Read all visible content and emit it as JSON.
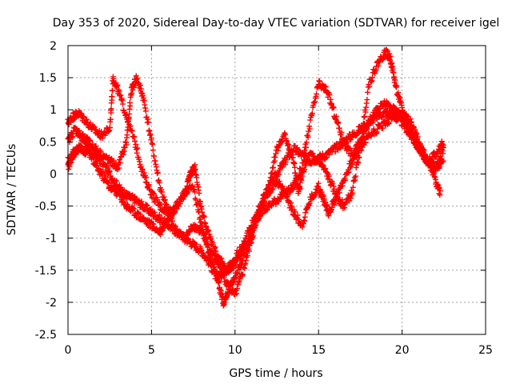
{
  "chart_data": {
    "type": "scatter",
    "title": "Day 353 of 2020, Sidereal Day-to-day VTEC variation (SDTVAR) for receiver igel",
    "xlabel": "GPS time / hours",
    "ylabel": "SDTVAR / TECUs",
    "xlim": [
      0,
      25
    ],
    "ylim": [
      -2.5,
      2
    ],
    "x_ticks": [
      "0",
      "5",
      "10",
      "15",
      "20",
      "25"
    ],
    "y_ticks": [
      "-2.5",
      "-2",
      "-1.5",
      "-1",
      "-0.5",
      "0",
      "0.5",
      "1",
      "1.5",
      "2"
    ],
    "grid": true,
    "marker": "plus",
    "color": "#ff0000",
    "series": [
      {
        "x": [
          0.0,
          0.3,
          0.6,
          1.0,
          1.5,
          2.0,
          2.5,
          3.0,
          3.3,
          3.6,
          4.0,
          4.5,
          5.0,
          5.5,
          6.0,
          6.5,
          7.0,
          7.5,
          8.0,
          8.5,
          9.0,
          9.3,
          9.6,
          10.0,
          10.5,
          11.0,
          11.5,
          12.0,
          12.5,
          13.0,
          13.5,
          14.0,
          14.5,
          15.0,
          15.5,
          16.0,
          16.5,
          17.0,
          17.5,
          18.0,
          18.5,
          19.0,
          19.5,
          20.0,
          20.5,
          21.0,
          21.5,
          22.0,
          22.5
        ],
        "y": [
          0.1,
          0.3,
          0.4,
          0.35,
          0.3,
          0.2,
          0.0,
          -0.2,
          -0.3,
          -0.35,
          -0.4,
          -0.5,
          -0.6,
          -0.7,
          -0.8,
          -0.9,
          -1.0,
          -1.1,
          -1.2,
          -1.4,
          -1.7,
          -2.0,
          -1.8,
          -1.6,
          -1.3,
          -0.9,
          -0.5,
          -0.2,
          0.0,
          0.2,
          0.4,
          0.3,
          0.2,
          0.25,
          0.3,
          0.4,
          0.5,
          0.6,
          0.7,
          0.8,
          0.9,
          0.95,
          0.9,
          0.8,
          0.6,
          0.4,
          0.2,
          0.3,
          0.5
        ]
      },
      {
        "x": [
          0.0,
          0.3,
          0.6,
          1.0,
          1.5,
          2.0,
          2.5,
          2.7,
          3.0,
          3.5,
          4.0,
          4.5,
          5.0,
          5.5,
          6.0,
          6.5,
          7.0,
          7.5,
          8.0,
          8.5,
          9.0,
          9.5,
          10.0,
          10.5,
          11.0,
          11.5,
          12.0,
          12.5,
          13.0,
          13.5,
          14.0,
          14.5,
          15.0,
          15.5,
          16.0,
          16.5,
          17.0,
          17.5,
          18.0,
          18.5,
          19.0,
          19.5,
          20.0,
          20.5,
          21.0,
          21.5,
          22.0,
          22.5
        ],
        "y": [
          0.8,
          0.9,
          0.95,
          0.85,
          0.7,
          0.6,
          0.7,
          1.5,
          1.3,
          0.9,
          0.5,
          0.0,
          -0.3,
          -0.5,
          -0.6,
          -0.5,
          -0.3,
          -0.2,
          -0.8,
          -1.3,
          -1.6,
          -1.5,
          -1.4,
          -1.2,
          -0.9,
          -0.6,
          -0.5,
          -0.4,
          -0.3,
          -0.2,
          0.1,
          0.8,
          1.4,
          1.3,
          0.9,
          0.5,
          0.3,
          0.5,
          0.8,
          1.0,
          1.1,
          1.0,
          0.9,
          0.7,
          0.4,
          0.2,
          0.1,
          0.2
        ]
      },
      {
        "x": [
          0.0,
          0.4,
          0.8,
          1.2,
          1.6,
          2.0,
          2.5,
          3.0,
          3.5,
          3.8,
          4.1,
          4.5,
          5.0,
          5.5,
          6.0,
          6.5,
          7.0,
          7.5,
          8.0,
          8.5,
          9.0,
          9.5,
          10.0,
          10.5,
          11.0,
          11.5,
          12.0,
          12.5,
          13.0,
          13.5,
          13.8,
          14.0,
          14.5,
          15.0,
          15.5,
          16.0,
          16.5,
          17.0,
          17.5,
          18.0,
          18.5,
          19.0,
          19.3,
          19.6,
          20.0,
          20.5,
          21.0,
          21.5,
          22.0,
          22.3
        ],
        "y": [
          0.5,
          0.7,
          0.6,
          0.5,
          0.4,
          0.3,
          0.2,
          0.1,
          0.5,
          1.3,
          1.5,
          1.2,
          0.5,
          -0.2,
          -0.6,
          -0.9,
          -1.0,
          -0.8,
          -0.9,
          -1.2,
          -1.4,
          -1.7,
          -1.9,
          -1.5,
          -1.0,
          -0.6,
          -0.2,
          0.4,
          0.6,
          0.2,
          -0.3,
          0.0,
          0.3,
          0.2,
          0.0,
          -0.3,
          -0.5,
          -0.3,
          0.4,
          1.4,
          1.7,
          1.9,
          1.8,
          1.4,
          1.0,
          0.7,
          0.4,
          0.2,
          -0.1,
          -0.3
        ]
      },
      {
        "x": [
          0.0,
          0.5,
          1.0,
          1.5,
          2.0,
          2.5,
          3.0,
          3.5,
          4.0,
          4.5,
          5.0,
          5.5,
          6.0,
          6.5,
          7.0,
          7.3,
          7.6,
          8.0,
          8.5,
          9.0,
          9.5,
          10.0,
          10.5,
          11.0,
          11.5,
          12.0,
          12.5,
          13.0,
          13.5,
          14.0,
          14.5,
          15.0,
          15.3,
          15.6,
          16.0,
          16.5,
          17.0,
          17.5,
          18.0,
          18.5,
          19.0,
          19.5,
          20.0,
          20.5,
          21.0,
          21.5,
          22.0,
          22.5
        ],
        "y": [
          0.2,
          0.4,
          0.5,
          0.2,
          0.0,
          -0.2,
          -0.3,
          -0.5,
          -0.6,
          -0.7,
          -0.8,
          -0.9,
          -0.7,
          -0.5,
          -0.3,
          0.0,
          0.1,
          -0.6,
          -1.0,
          -1.3,
          -1.5,
          -1.3,
          -1.1,
          -0.8,
          -0.5,
          -0.3,
          -0.1,
          -0.3,
          -0.6,
          -0.8,
          -0.4,
          -0.2,
          -0.4,
          -0.6,
          -0.4,
          -0.1,
          0.2,
          0.4,
          0.6,
          0.7,
          0.8,
          0.9,
          0.95,
          0.8,
          0.5,
          0.2,
          0.1,
          0.4
        ]
      }
    ]
  }
}
